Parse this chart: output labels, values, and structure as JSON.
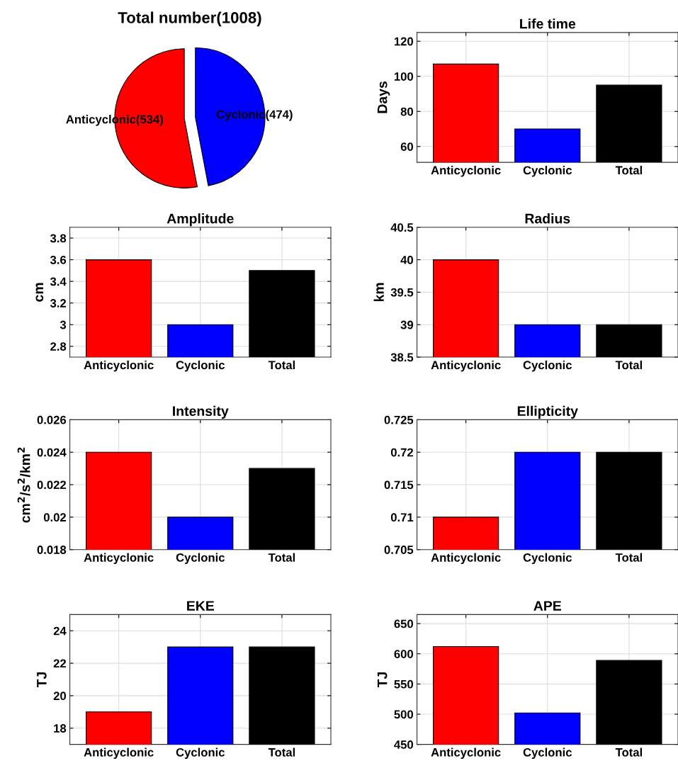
{
  "chart_data": [
    {
      "type": "pie",
      "title": "Total number(1008)",
      "categories": [
        "Anticyclonic(534)",
        "Cyclonic(474)"
      ],
      "values": [
        534,
        474
      ],
      "colors": [
        "#ff0000",
        "#0000ff"
      ]
    },
    {
      "type": "bar",
      "title": "Life time",
      "ylabel": "Days",
      "categories": [
        "Anticyclonic",
        "Cyclonic",
        "Total"
      ],
      "values": [
        107,
        70,
        95
      ],
      "colors": [
        "#ff0000",
        "#0000ff",
        "#000000"
      ],
      "ylim": [
        51,
        125
      ],
      "yticks": [
        60,
        80,
        100,
        120
      ],
      "grid": true
    },
    {
      "type": "bar",
      "title": "Amplitude",
      "ylabel": "cm",
      "categories": [
        "Anticyclonic",
        "Cyclonic",
        "Total"
      ],
      "values": [
        3.6,
        3.0,
        3.5
      ],
      "colors": [
        "#ff0000",
        "#0000ff",
        "#000000"
      ],
      "ylim": [
        2.7,
        3.9
      ],
      "yticks": [
        2.8,
        3,
        3.2,
        3.4,
        3.6,
        3.8
      ],
      "grid": true
    },
    {
      "type": "bar",
      "title": "Radius",
      "ylabel": "km",
      "categories": [
        "Anticyclonic",
        "Cyclonic",
        "Total"
      ],
      "values": [
        40,
        39,
        39
      ],
      "colors": [
        "#ff0000",
        "#0000ff",
        "#000000"
      ],
      "ylim": [
        38.5,
        40.5
      ],
      "yticks": [
        38.5,
        39,
        39.5,
        40,
        40.5
      ],
      "grid": true
    },
    {
      "type": "bar",
      "title": "Intensity",
      "ylabel": "cm$^{2}$/s$^{2}$/km$^{2}$",
      "categories": [
        "Anticyclonic",
        "Cyclonic",
        "Total"
      ],
      "values": [
        0.024,
        0.02,
        0.023
      ],
      "colors": [
        "#ff0000",
        "#0000ff",
        "#000000"
      ],
      "ylim": [
        0.018,
        0.026
      ],
      "yticks": [
        0.018,
        0.02,
        0.022,
        0.024,
        0.026
      ],
      "grid": true
    },
    {
      "type": "bar",
      "title": "Ellipticity",
      "categories": [
        "Anticyclonic",
        "Cyclonic",
        "Total"
      ],
      "values": [
        0.71,
        0.72,
        0.72
      ],
      "colors": [
        "#ff0000",
        "#0000ff",
        "#000000"
      ],
      "ylim": [
        0.705,
        0.725
      ],
      "yticks": [
        0.705,
        0.71,
        0.715,
        0.72,
        0.725
      ],
      "grid": true
    },
    {
      "type": "bar",
      "title": "EKE",
      "ylabel": "TJ",
      "categories": [
        "Anticyclonic",
        "Cyclonic",
        "Total"
      ],
      "values": [
        19,
        23,
        23
      ],
      "colors": [
        "#ff0000",
        "#0000ff",
        "#000000"
      ],
      "ylim": [
        17,
        25
      ],
      "yticks": [
        18,
        20,
        22,
        24
      ],
      "grid": true
    },
    {
      "type": "bar",
      "title": "APE",
      "ylabel": "TJ",
      "categories": [
        "Anticyclonic",
        "Cyclonic",
        "Total"
      ],
      "values": [
        612,
        502,
        589
      ],
      "colors": [
        "#ff0000",
        "#0000ff",
        "#000000"
      ],
      "ylim": [
        450,
        665
      ],
      "yticks": [
        450,
        500,
        550,
        600,
        650
      ],
      "grid": true
    }
  ]
}
